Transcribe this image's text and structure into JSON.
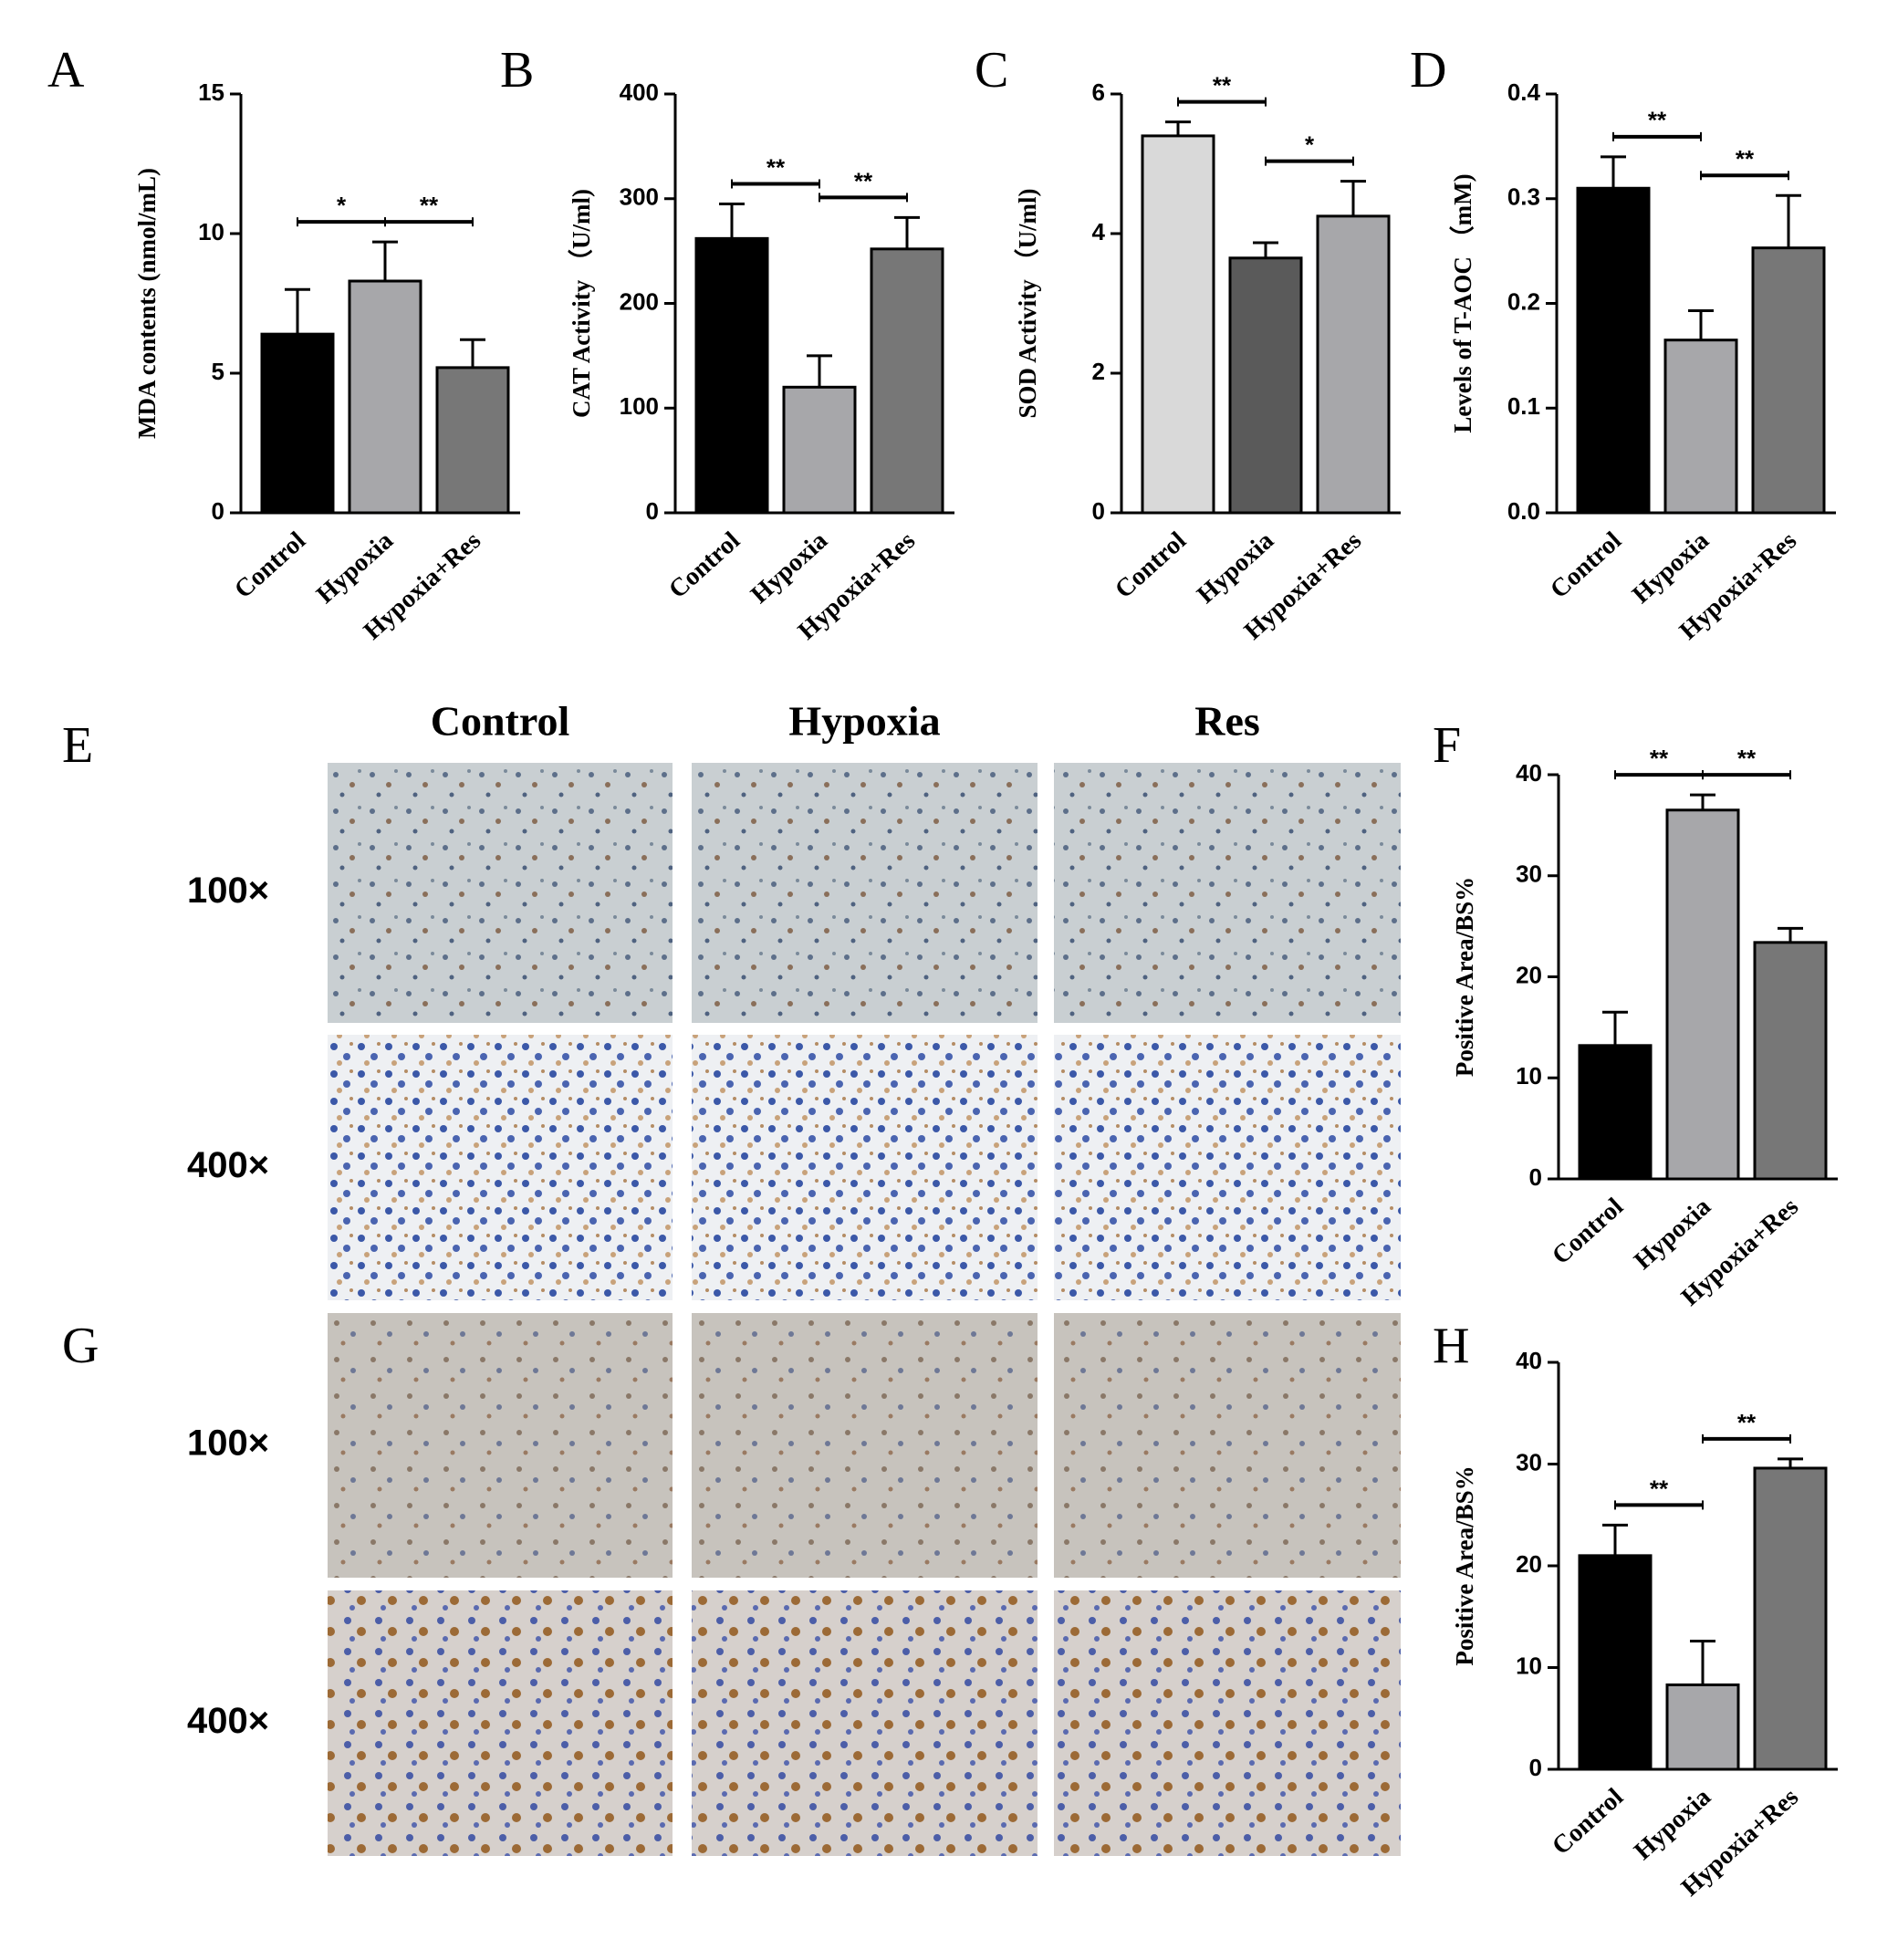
{
  "chart_data": [
    {
      "type": "bar",
      "panel": "A",
      "ylabel": "MDA contents (nmol/mL)",
      "categories": [
        "Control",
        "Hypoxia",
        "Hypoxia+Res"
      ],
      "values": [
        6.4,
        8.3,
        5.2
      ],
      "errors": [
        1.6,
        1.4,
        1.0
      ],
      "colors": [
        "#000000",
        "#a7a7aa",
        "#777777"
      ],
      "ylim": [
        0,
        15
      ],
      "yticks": [
        0,
        5,
        10,
        15
      ],
      "annotations": [
        {
          "label": "*",
          "from": "Control",
          "to": "Hypoxia"
        },
        {
          "label": "**",
          "from": "Hypoxia",
          "to": "Hypoxia+Res"
        }
      ]
    },
    {
      "type": "bar",
      "panel": "B",
      "ylabel": "CAT Activity （U/ml)",
      "categories": [
        "Control",
        "Hypoxia",
        "Hypoxia+Res"
      ],
      "values": [
        262,
        120,
        252
      ],
      "errors": [
        33,
        30,
        30
      ],
      "colors": [
        "#000000",
        "#a7a7aa",
        "#777777"
      ],
      "ylim": [
        0,
        400
      ],
      "yticks": [
        0,
        100,
        200,
        300,
        400
      ],
      "annotations": [
        {
          "label": "**",
          "from": "Control",
          "to": "Hypoxia"
        },
        {
          "label": "**",
          "from": "Hypoxia",
          "to": "Hypoxia+Res"
        }
      ]
    },
    {
      "type": "bar",
      "panel": "C",
      "ylabel": "SOD Activity （U/ml)",
      "categories": [
        "Control",
        "Hypoxia",
        "Hypoxia+Res"
      ],
      "values": [
        5.4,
        3.65,
        4.25
      ],
      "errors": [
        0.2,
        0.22,
        0.5
      ],
      "colors": [
        "#d9d9d9",
        "#5a5a5a",
        "#a7a7aa"
      ],
      "ylim": [
        0,
        6
      ],
      "yticks": [
        0,
        2,
        4,
        6
      ],
      "annotations": [
        {
          "label": "**",
          "from": "Control",
          "to": "Hypoxia"
        },
        {
          "label": "*",
          "from": "Hypoxia",
          "to": "Hypoxia+Res"
        }
      ]
    },
    {
      "type": "bar",
      "panel": "D",
      "ylabel": "Levels of T-AOC （mM)",
      "categories": [
        "Control",
        "Hypoxia",
        "Hypoxia+Res"
      ],
      "values": [
        0.31,
        0.165,
        0.253
      ],
      "errors": [
        0.03,
        0.028,
        0.05
      ],
      "colors": [
        "#000000",
        "#a7a7aa",
        "#777777"
      ],
      "ylim": [
        0,
        0.4
      ],
      "yticks": [
        {
          "value": 0,
          "label": "0.0"
        },
        0.1,
        0.2,
        0.3,
        0.4
      ],
      "annotations": [
        {
          "label": "**",
          "from": "Control",
          "to": "Hypoxia"
        },
        {
          "label": "**",
          "from": "Hypoxia",
          "to": "Hypoxia+Res"
        }
      ]
    },
    {
      "type": "bar",
      "panel": "F",
      "ylabel": "Positive Area/BS%",
      "categories": [
        "Control",
        "Hypoxia",
        "Hypoxia+Res"
      ],
      "values": [
        13.2,
        36.5,
        23.4
      ],
      "errors": [
        3.3,
        1.5,
        1.4
      ],
      "colors": [
        "#000000",
        "#a7a7aa",
        "#777777"
      ],
      "ylim": [
        0,
        40
      ],
      "yticks": [
        0,
        10,
        20,
        30,
        40
      ],
      "annotations": [
        {
          "label": "**",
          "from": "Control",
          "to": "Hypoxia"
        },
        {
          "label": "**",
          "from": "Hypoxia",
          "to": "Hypoxia+Res"
        }
      ]
    },
    {
      "type": "bar",
      "panel": "H",
      "ylabel": "Positive Area/BS%",
      "categories": [
        "Control",
        "Hypoxia",
        "Hypoxia+Res"
      ],
      "values": [
        21,
        8.3,
        29.6
      ],
      "errors": [
        3,
        4.3,
        0.9
      ],
      "colors": [
        "#000000",
        "#a7a7aa",
        "#777777"
      ],
      "ylim": [
        0,
        40
      ],
      "yticks": [
        0,
        10,
        20,
        30,
        40
      ],
      "annotations": [
        {
          "label": "**",
          "from": "Control",
          "to": "Hypoxia"
        },
        {
          "label": "**",
          "from": "Hypoxia",
          "to": "Hypoxia+Res"
        }
      ]
    }
  ],
  "image_panels": [
    {
      "panel": "E",
      "columns": [
        "Control",
        "Hypoxia",
        "Res"
      ],
      "rows": [
        "100×",
        "400×"
      ]
    },
    {
      "panel": "G",
      "rows": [
        "100×",
        "400×"
      ]
    }
  ]
}
